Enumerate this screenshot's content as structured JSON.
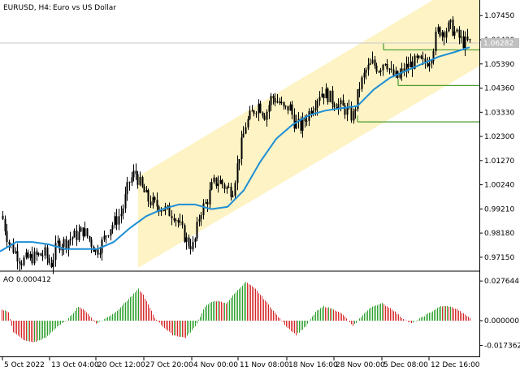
{
  "header": {
    "symbol": "EURUSD, H4:",
    "description": "Euro vs US Dollar"
  },
  "price_axis": {
    "labels": [
      "1.07450",
      "1.06420",
      "1.05390",
      "1.04360",
      "1.03330",
      "1.02300",
      "1.01270",
      "1.00240",
      "0.99210",
      "0.98180",
      "0.97150"
    ],
    "current_price": "1.06282"
  },
  "ao_panel": {
    "title": "AO 0.000412",
    "labels": [
      "0.027644",
      "0.000000",
      "-0.017362"
    ]
  },
  "time_axis": {
    "labels": [
      "5 Oct 2022",
      "13 Oct 04:00",
      "20 Oct 12:00",
      "27 Oct 20:00",
      "4 Nov 00:00",
      "11 Nov 08:00",
      "18 Nov 16:00",
      "28 Nov 00:00",
      "5 Dec 08:00",
      "12 Dec 16:00"
    ]
  },
  "colors": {
    "candle": "#000000",
    "ma": "#1e8fd6",
    "channel_fill": "#fdf3c4",
    "levels": "#4a9a2e",
    "ao_up": "#2ca02c",
    "ao_down": "#d62728",
    "grid": "#c8c8c8",
    "current_price_box": "#c0c0c0"
  },
  "chart_data": {
    "type": "candlestick",
    "symbol": "EURUSD",
    "timeframe": "H4",
    "ylim": [
      0.968,
      1.077
    ],
    "price_path": [
      [
        0,
        0.992
      ],
      [
        5,
        0.985
      ],
      [
        10,
        0.978
      ],
      [
        18,
        0.974
      ],
      [
        26,
        0.97
      ],
      [
        35,
        0.971
      ],
      [
        45,
        0.972
      ],
      [
        55,
        0.973
      ],
      [
        62,
        0.968
      ],
      [
        70,
        0.977
      ],
      [
        80,
        0.978
      ],
      [
        88,
        0.98
      ],
      [
        95,
        0.981
      ],
      [
        102,
        0.983
      ],
      [
        110,
        0.979
      ],
      [
        118,
        0.974
      ],
      [
        126,
        0.978
      ],
      [
        134,
        0.984
      ],
      [
        142,
        0.987
      ],
      [
        150,
        0.991
      ],
      [
        158,
        1.003
      ],
      [
        166,
        1.008
      ],
      [
        174,
        1.001
      ],
      [
        182,
        0.996
      ],
      [
        190,
        0.994
      ],
      [
        198,
        0.993
      ],
      [
        206,
        0.991
      ],
      [
        214,
        0.99
      ],
      [
        222,
        0.984
      ],
      [
        230,
        0.978
      ],
      [
        238,
        0.976
      ],
      [
        246,
        0.991
      ],
      [
        254,
        0.995
      ],
      [
        262,
        1.003
      ],
      [
        270,
        1.004
      ],
      [
        278,
        1.001
      ],
      [
        286,
        1.0
      ],
      [
        294,
        1.015
      ],
      [
        302,
        1.028
      ],
      [
        310,
        1.033
      ],
      [
        318,
        1.037
      ],
      [
        326,
        1.032
      ],
      [
        334,
        1.04
      ],
      [
        342,
        1.038
      ],
      [
        350,
        1.034
      ],
      [
        356,
        1.036
      ],
      [
        362,
        1.029
      ],
      [
        370,
        1.027
      ],
      [
        378,
        1.032
      ],
      [
        386,
        1.037
      ],
      [
        394,
        1.042
      ],
      [
        402,
        1.041
      ],
      [
        410,
        1.038
      ],
      [
        418,
        1.036
      ],
      [
        426,
        1.034
      ],
      [
        434,
        1.031
      ],
      [
        442,
        1.044
      ],
      [
        450,
        1.051
      ],
      [
        458,
        1.054
      ],
      [
        466,
        1.052
      ],
      [
        474,
        1.056
      ],
      [
        482,
        1.049
      ],
      [
        490,
        1.048
      ],
      [
        498,
        1.052
      ],
      [
        506,
        1.054
      ],
      [
        514,
        1.055
      ],
      [
        522,
        1.054
      ],
      [
        530,
        1.057
      ],
      [
        538,
        1.068
      ],
      [
        546,
        1.068
      ],
      [
        554,
        1.07
      ],
      [
        562,
        1.066
      ],
      [
        570,
        1.063
      ],
      [
        578,
        1.063
      ]
    ],
    "ma_path": [
      [
        0,
        0.974
      ],
      [
        20,
        0.978
      ],
      [
        40,
        0.978
      ],
      [
        60,
        0.977
      ],
      [
        80,
        0.975
      ],
      [
        100,
        0.975
      ],
      [
        120,
        0.975
      ],
      [
        140,
        0.978
      ],
      [
        160,
        0.984
      ],
      [
        180,
        0.989
      ],
      [
        200,
        0.992
      ],
      [
        220,
        0.994
      ],
      [
        240,
        0.994
      ],
      [
        260,
        0.992
      ],
      [
        280,
        0.993
      ],
      [
        300,
        1.0
      ],
      [
        320,
        1.012
      ],
      [
        340,
        1.022
      ],
      [
        360,
        1.028
      ],
      [
        380,
        1.032
      ],
      [
        400,
        1.034
      ],
      [
        420,
        1.035
      ],
      [
        440,
        1.036
      ],
      [
        460,
        1.043
      ],
      [
        480,
        1.048
      ],
      [
        500,
        1.051
      ],
      [
        520,
        1.054
      ],
      [
        540,
        1.057
      ],
      [
        560,
        1.059
      ],
      [
        578,
        1.061
      ]
    ],
    "channel": {
      "x0": 170,
      "x1": 590,
      "lower_start": 0.967,
      "lower_end": 1.053,
      "upper_start": 1.006,
      "upper_end": 1.093
    },
    "levels": [
      {
        "x0": 472,
        "x1": 590,
        "price": 1.0599
      },
      {
        "x0": 490,
        "x1": 590,
        "price": 1.0447
      },
      {
        "x0": 440,
        "x1": 590,
        "price": 1.0292
      }
    ],
    "ao": {
      "ylim": [
        -0.021,
        0.03
      ],
      "path": [
        [
          0,
          0.008
        ],
        [
          10,
          0.006
        ],
        [
          16,
          -0.008
        ],
        [
          30,
          -0.014
        ],
        [
          42,
          -0.015
        ],
        [
          56,
          -0.012
        ],
        [
          70,
          -0.004
        ],
        [
          82,
          0.0
        ],
        [
          96,
          0.01
        ],
        [
          106,
          0.006
        ],
        [
          118,
          -0.002
        ],
        [
          128,
          0.001
        ],
        [
          142,
          0.006
        ],
        [
          156,
          0.014
        ],
        [
          170,
          0.022
        ],
        [
          176,
          0.018
        ],
        [
          190,
          0.002
        ],
        [
          200,
          -0.004
        ],
        [
          212,
          -0.01
        ],
        [
          228,
          -0.012
        ],
        [
          240,
          -0.004
        ],
        [
          252,
          0.01
        ],
        [
          264,
          0.014
        ],
        [
          278,
          0.012
        ],
        [
          290,
          0.02
        ],
        [
          302,
          0.027
        ],
        [
          314,
          0.022
        ],
        [
          326,
          0.014
        ],
        [
          340,
          0.004
        ],
        [
          352,
          -0.004
        ],
        [
          364,
          -0.01
        ],
        [
          376,
          -0.004
        ],
        [
          388,
          0.006
        ],
        [
          398,
          0.01
        ],
        [
          410,
          0.008
        ],
        [
          422,
          0.004
        ],
        [
          434,
          -0.004
        ],
        [
          446,
          0.004
        ],
        [
          458,
          0.01
        ],
        [
          470,
          0.012
        ],
        [
          482,
          0.008
        ],
        [
          494,
          0.002
        ],
        [
          506,
          -0.002
        ],
        [
          518,
          0.002
        ],
        [
          530,
          0.006
        ],
        [
          542,
          0.01
        ],
        [
          552,
          0.01
        ],
        [
          562,
          0.008
        ],
        [
          572,
          0.004
        ],
        [
          578,
          0.002
        ]
      ]
    }
  }
}
